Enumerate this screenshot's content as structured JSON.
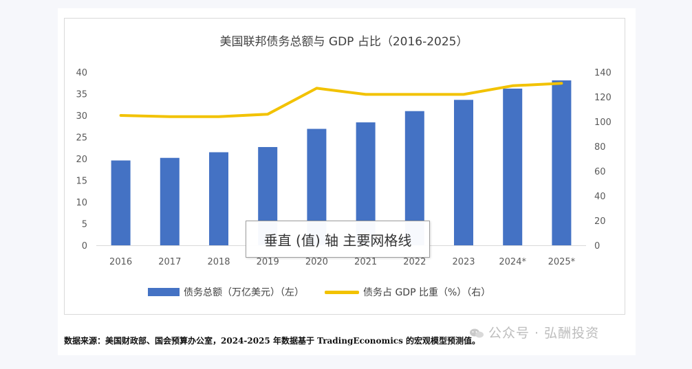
{
  "chart_data": {
    "type": "bar",
    "title": "美国联邦债务总额与 GDP 占比（2016-2025）",
    "categories": [
      "2016",
      "2017",
      "2018",
      "2019",
      "2020",
      "2021",
      "2022",
      "2023",
      "2024*",
      "2025*"
    ],
    "series": [
      {
        "name": "债务总额（万亿美元）（左）",
        "type": "bar",
        "axis": "left",
        "color": "#4472c4",
        "values": [
          19.6,
          20.2,
          21.5,
          22.7,
          26.9,
          28.4,
          31.0,
          33.6,
          36.2,
          38.1
        ]
      },
      {
        "name": "债务占 GDP 比重（%）（右）",
        "type": "line",
        "axis": "right",
        "color": "#f2c200",
        "values": [
          105,
          104,
          104,
          106,
          127,
          122,
          122,
          122,
          129,
          131
        ]
      }
    ],
    "left_axis": {
      "min": 0,
      "max": 40,
      "ticks": [
        "0",
        "5",
        "10",
        "15",
        "20",
        "25",
        "30",
        "35",
        "40"
      ]
    },
    "right_axis": {
      "min": 0,
      "max": 140,
      "ticks": [
        "0",
        "20",
        "40",
        "60",
        "80",
        "100",
        "120",
        "140"
      ]
    },
    "grid": false,
    "legend_position": "bottom"
  },
  "tooltip_text": "垂直 (值) 轴 主要网格线",
  "source_note": "数据来源：美国财政部、国会预算办公室，2024-2025 年数据基于 TradingEconomics 的宏观模型预测值。",
  "watermark": "公众号 · 弘酬投资",
  "icons": {
    "watermark_icon": "wechat-icon"
  }
}
